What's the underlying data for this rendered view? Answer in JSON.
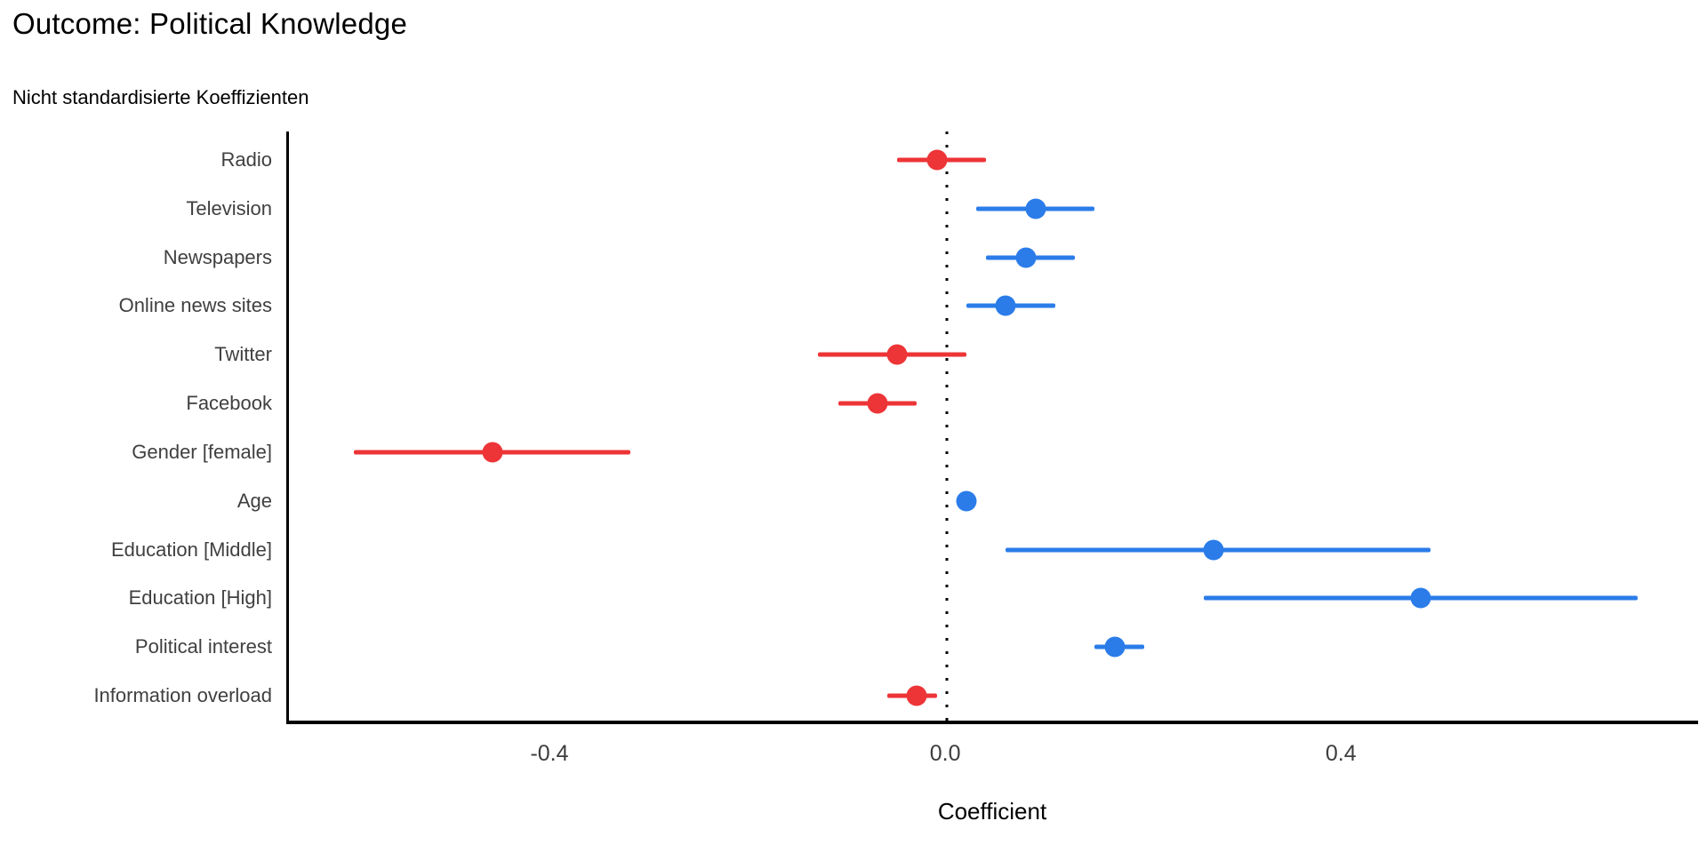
{
  "chart_data": {
    "type": "scatter",
    "subtype": "coefficient-dot-whisker",
    "title": "Outcome: Political Knowledge",
    "subtitle": "Nicht standardisierte Koeffizienten",
    "xlabel": "Coefficient",
    "x_ticks": [
      -0.4,
      0.0,
      0.4
    ],
    "x_tick_labels": [
      "-0.4",
      "0.0",
      "0.4"
    ],
    "xlim": [
      -0.666,
      0.761
    ],
    "zero_reference_line": 0.0,
    "grid": false,
    "legend": "none",
    "colors": {
      "positive": "#2b7ce9",
      "negative": "#ed3437",
      "axis": "#000000",
      "labels": "#404040"
    },
    "rows": [
      {
        "label": "Radio",
        "estimate": -0.01,
        "ci_low": -0.05,
        "ci_high": 0.04,
        "direction": "negative"
      },
      {
        "label": "Television",
        "estimate": 0.09,
        "ci_low": 0.03,
        "ci_high": 0.15,
        "direction": "positive"
      },
      {
        "label": "Newspapers",
        "estimate": 0.08,
        "ci_low": 0.04,
        "ci_high": 0.13,
        "direction": "positive"
      },
      {
        "label": "Online news sites",
        "estimate": 0.06,
        "ci_low": 0.02,
        "ci_high": 0.11,
        "direction": "positive"
      },
      {
        "label": "Twitter",
        "estimate": -0.05,
        "ci_low": -0.13,
        "ci_high": 0.02,
        "direction": "negative"
      },
      {
        "label": "Facebook",
        "estimate": -0.07,
        "ci_low": -0.11,
        "ci_high": -0.03,
        "direction": "negative"
      },
      {
        "label": "Gender [female]",
        "estimate": -0.46,
        "ci_low": -0.6,
        "ci_high": -0.32,
        "direction": "negative"
      },
      {
        "label": "Age",
        "estimate": 0.02,
        "ci_low": 0.01,
        "ci_high": 0.03,
        "direction": "positive"
      },
      {
        "label": "Education [Middle]",
        "estimate": 0.27,
        "ci_low": 0.06,
        "ci_high": 0.49,
        "direction": "positive"
      },
      {
        "label": "Education [High]",
        "estimate": 0.48,
        "ci_low": 0.26,
        "ci_high": 0.7,
        "direction": "positive"
      },
      {
        "label": "Political interest",
        "estimate": 0.17,
        "ci_low": 0.15,
        "ci_high": 0.2,
        "direction": "positive"
      },
      {
        "label": "Information overload",
        "estimate": -0.03,
        "ci_low": -0.06,
        "ci_high": -0.01,
        "direction": "negative"
      }
    ]
  }
}
